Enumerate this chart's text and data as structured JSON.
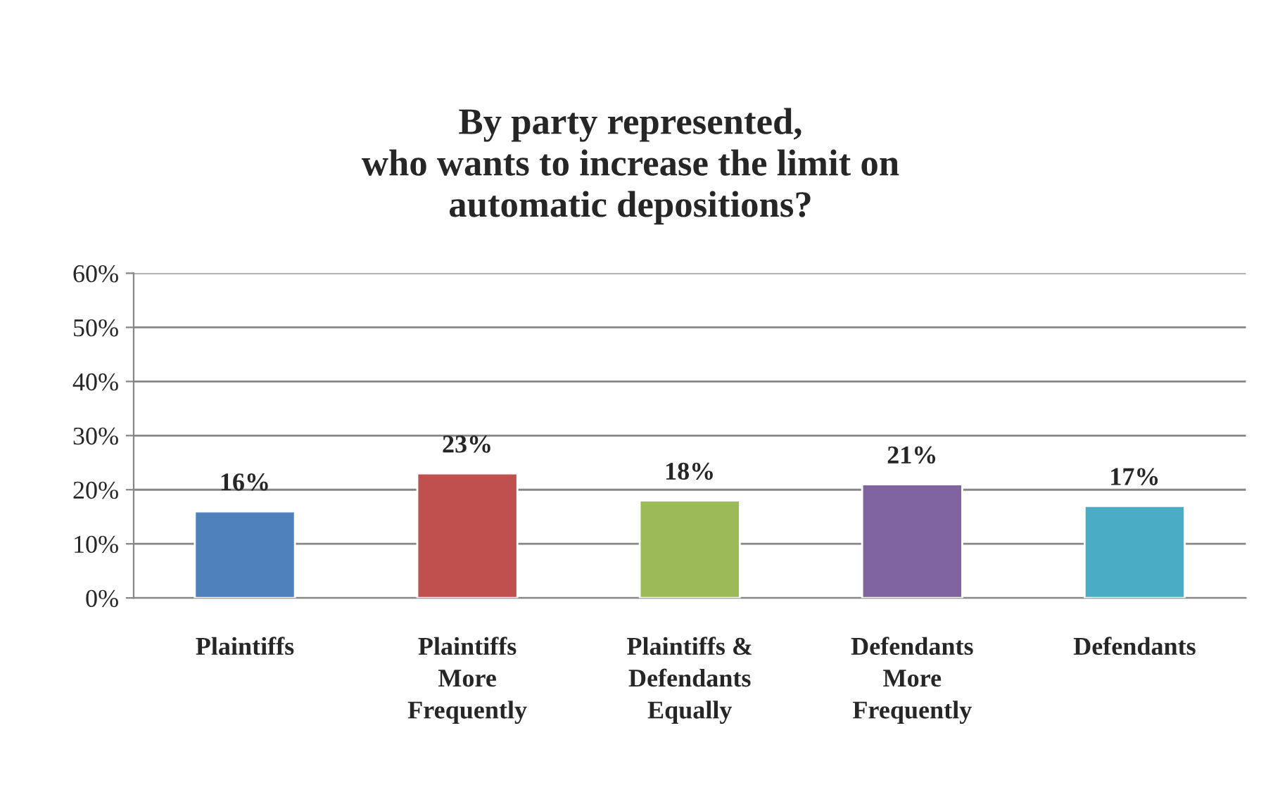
{
  "chart_data": {
    "type": "bar",
    "title": "By party represented,\nwho wants to increase the limit on\nautomatic depositions?",
    "categories": [
      "Plaintiffs",
      "Plaintiffs\nMore\nFrequently",
      "Plaintiffs &\nDefendants\nEqually",
      "Defendants\nMore\nFrequently",
      "Defendants"
    ],
    "values": [
      16,
      23,
      18,
      21,
      17
    ],
    "colors": [
      "#4f81bd",
      "#c0504d",
      "#9bbb59",
      "#8064a2",
      "#4bacc6"
    ],
    "value_labels": [
      "16%",
      "23%",
      "18%",
      "21%",
      "17%"
    ],
    "ylim": [
      0,
      60
    ],
    "yticks": [
      {
        "value": 0,
        "label": "0%"
      },
      {
        "value": 10,
        "label": "10%"
      },
      {
        "value": 20,
        "label": "20%"
      },
      {
        "value": 30,
        "label": "30%"
      },
      {
        "value": 40,
        "label": "40%"
      },
      {
        "value": 50,
        "label": "50%"
      },
      {
        "value": 60,
        "label": "60%"
      }
    ],
    "grid": "y",
    "legend": false
  }
}
